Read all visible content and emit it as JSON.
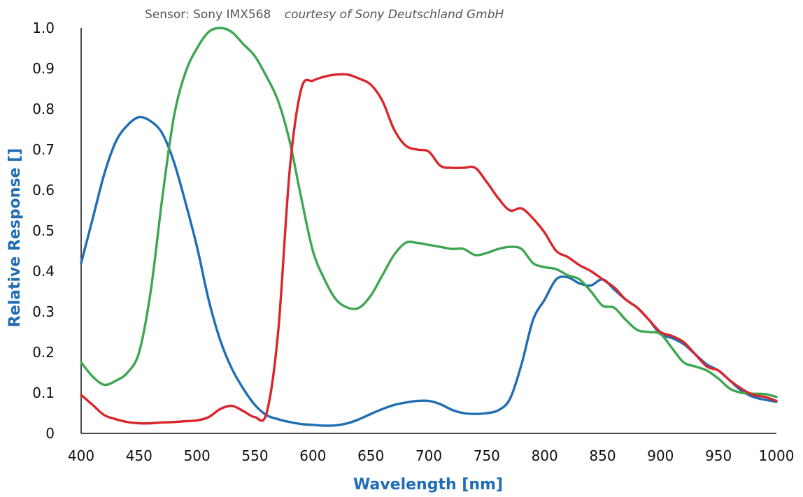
{
  "chart_data": {
    "type": "line",
    "title": "",
    "subtitle": {
      "sensor": "Sensor: Sony IMX568",
      "credit": "courtesy of Sony Deutschland GmbH"
    },
    "xlabel": "Wavelength [nm]",
    "ylabel": "Relative Response []",
    "xlim": [
      400,
      1000
    ],
    "ylim": [
      0,
      1.0
    ],
    "x_ticks": [
      400,
      450,
      500,
      550,
      600,
      650,
      700,
      750,
      800,
      850,
      900,
      950,
      1000
    ],
    "y_ticks": [
      {
        "value": 0,
        "label": "0"
      },
      {
        "value": 0.1,
        "label": "0.1"
      },
      {
        "value": 0.2,
        "label": "0.2"
      },
      {
        "value": 0.3,
        "label": "0.3"
      },
      {
        "value": 0.4,
        "label": "0.4"
      },
      {
        "value": 0.5,
        "label": "0.5"
      },
      {
        "value": 0.6,
        "label": "0.6"
      },
      {
        "value": 0.7,
        "label": "0.7"
      },
      {
        "value": 0.8,
        "label": "0.8"
      },
      {
        "value": 0.9,
        "label": "0.9"
      },
      {
        "value": 1.0,
        "label": "1.0"
      }
    ],
    "grid": false,
    "legend": "none",
    "series": [
      {
        "color": "#1f6db3",
        "x": [
          400,
          410,
          420,
          430,
          440,
          450,
          460,
          470,
          480,
          490,
          500,
          510,
          520,
          530,
          540,
          550,
          560,
          570,
          580,
          590,
          600,
          610,
          620,
          630,
          640,
          650,
          660,
          670,
          680,
          690,
          700,
          710,
          720,
          730,
          740,
          750,
          760,
          770,
          780,
          790,
          800,
          810,
          820,
          830,
          840,
          850,
          860,
          870,
          880,
          890,
          900,
          910,
          920,
          930,
          940,
          950,
          960,
          970,
          980,
          990,
          1000
        ],
        "values": [
          0.42,
          0.53,
          0.64,
          0.72,
          0.76,
          0.78,
          0.77,
          0.74,
          0.67,
          0.57,
          0.46,
          0.33,
          0.23,
          0.16,
          0.11,
          0.07,
          0.045,
          0.035,
          0.028,
          0.023,
          0.021,
          0.019,
          0.02,
          0.025,
          0.035,
          0.048,
          0.06,
          0.07,
          0.076,
          0.08,
          0.08,
          0.072,
          0.058,
          0.05,
          0.048,
          0.05,
          0.057,
          0.085,
          0.17,
          0.28,
          0.33,
          0.38,
          0.385,
          0.37,
          0.365,
          0.38,
          0.355,
          0.33,
          0.31,
          0.28,
          0.245,
          0.235,
          0.22,
          0.195,
          0.17,
          0.155,
          0.13,
          0.105,
          0.09,
          0.083,
          0.078
        ]
      },
      {
        "color": "#3da653",
        "x": [
          400,
          410,
          420,
          430,
          440,
          450,
          460,
          470,
          480,
          490,
          500,
          510,
          520,
          530,
          540,
          550,
          560,
          570,
          580,
          590,
          600,
          610,
          620,
          630,
          640,
          650,
          660,
          670,
          680,
          690,
          700,
          710,
          720,
          730,
          740,
          750,
          760,
          770,
          780,
          790,
          800,
          810,
          820,
          830,
          840,
          850,
          860,
          870,
          880,
          890,
          900,
          910,
          920,
          930,
          940,
          950,
          960,
          970,
          980,
          990,
          1000
        ],
        "values": [
          0.175,
          0.14,
          0.12,
          0.13,
          0.15,
          0.2,
          0.35,
          0.58,
          0.78,
          0.89,
          0.95,
          0.99,
          1.0,
          0.99,
          0.96,
          0.93,
          0.88,
          0.82,
          0.72,
          0.58,
          0.45,
          0.38,
          0.33,
          0.31,
          0.31,
          0.34,
          0.39,
          0.44,
          0.47,
          0.47,
          0.465,
          0.46,
          0.455,
          0.455,
          0.44,
          0.445,
          0.455,
          0.46,
          0.455,
          0.42,
          0.41,
          0.405,
          0.39,
          0.38,
          0.35,
          0.315,
          0.31,
          0.28,
          0.255,
          0.25,
          0.245,
          0.21,
          0.175,
          0.165,
          0.155,
          0.135,
          0.11,
          0.1,
          0.098,
          0.097,
          0.09
        ]
      },
      {
        "color": "#d9262b",
        "x": [
          400,
          410,
          420,
          430,
          440,
          450,
          460,
          470,
          480,
          490,
          500,
          510,
          520,
          530,
          540,
          550,
          560,
          570,
          580,
          590,
          600,
          610,
          620,
          630,
          640,
          650,
          660,
          670,
          680,
          690,
          700,
          710,
          720,
          730,
          740,
          750,
          760,
          770,
          780,
          790,
          800,
          810,
          820,
          830,
          840,
          850,
          860,
          870,
          880,
          890,
          900,
          910,
          920,
          930,
          940,
          950,
          960,
          970,
          980,
          990,
          1000
        ],
        "values": [
          0.095,
          0.07,
          0.045,
          0.035,
          0.028,
          0.025,
          0.025,
          0.027,
          0.028,
          0.03,
          0.032,
          0.04,
          0.06,
          0.068,
          0.055,
          0.04,
          0.05,
          0.25,
          0.65,
          0.85,
          0.87,
          0.88,
          0.885,
          0.885,
          0.875,
          0.86,
          0.82,
          0.75,
          0.71,
          0.7,
          0.695,
          0.66,
          0.655,
          0.655,
          0.655,
          0.62,
          0.58,
          0.55,
          0.555,
          0.53,
          0.495,
          0.45,
          0.435,
          0.415,
          0.4,
          0.38,
          0.36,
          0.33,
          0.31,
          0.28,
          0.25,
          0.24,
          0.225,
          0.195,
          0.165,
          0.155,
          0.13,
          0.11,
          0.095,
          0.09,
          0.08
        ]
      }
    ]
  }
}
